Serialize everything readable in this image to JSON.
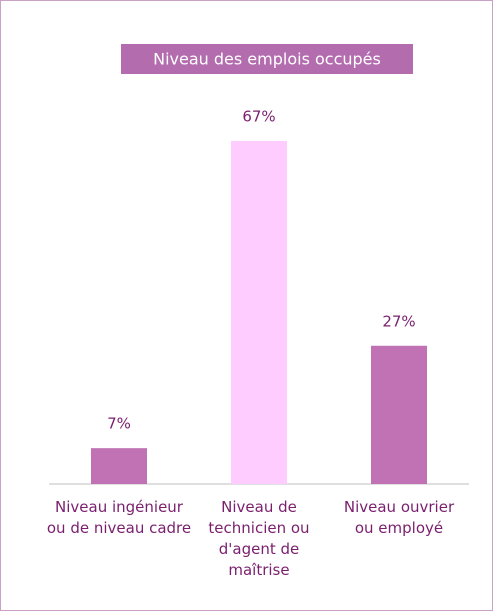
{
  "chart_data": {
    "type": "bar",
    "title": "Niveau des emplois occupés",
    "categories": [
      "Niveau ingénieur ou de niveau cadre",
      "Niveau de technicien ou d'agent de maîtrise",
      "Niveau ouvrier ou employé"
    ],
    "values": [
      7,
      67,
      27
    ],
    "value_labels": [
      "7%",
      "67%",
      "27%"
    ],
    "colors": [
      "#c072b4",
      "#ffccff",
      "#c072b4"
    ],
    "ylim": [
      0,
      75
    ]
  }
}
